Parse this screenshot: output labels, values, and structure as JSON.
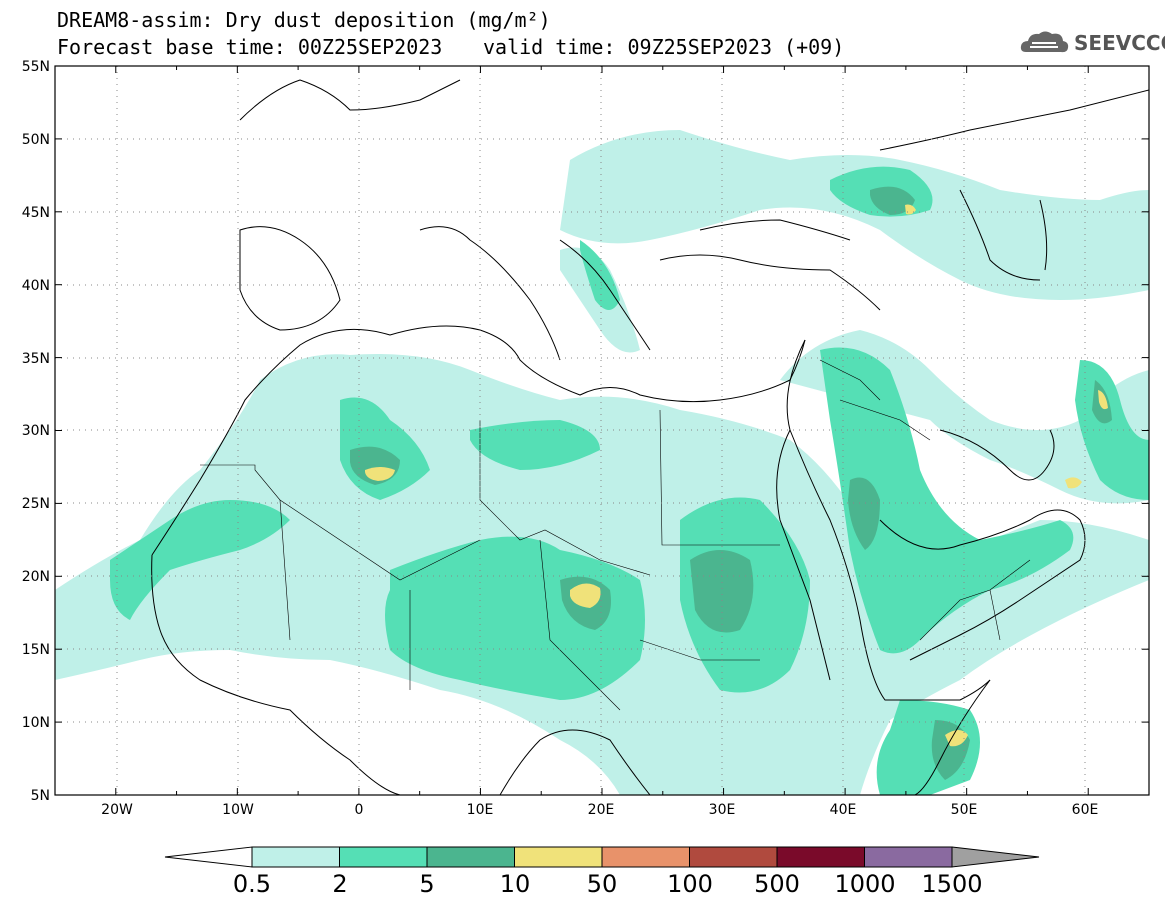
{
  "title": {
    "line1": "DREAM8-assim: Dry dust deposition (mg/m²)",
    "line2": "Forecast base time: 00Z25SEP2023",
    "valid": "valid time: 09Z25SEP2023 (+09)"
  },
  "logo": {
    "text": "SEEVCCC",
    "icon": "cloud-logo-icon"
  },
  "map": {
    "lon_range": [
      -25,
      65
    ],
    "lat_range": [
      5,
      55
    ],
    "lat_ticks": [
      "5N",
      "10N",
      "15N",
      "20N",
      "25N",
      "30N",
      "35N",
      "40N",
      "45N",
      "50N",
      "55N"
    ],
    "lon_ticks": [
      "20W",
      "10W",
      "0",
      "10E",
      "20E",
      "30E",
      "40E",
      "50E",
      "60E"
    ],
    "grid": "dotted"
  },
  "colorbar": {
    "labels": [
      "0.5",
      "2",
      "5",
      "10",
      "50",
      "100",
      "500",
      "1000",
      "1500"
    ],
    "colors": [
      "#bff0e8",
      "#55dfb5",
      "#4bb58f",
      "#f0e27a",
      "#e8926a",
      "#b04a3e",
      "#7a0a2a",
      "#8a6aa0"
    ],
    "under_color": "#ffffff",
    "over_color": "#a0a0a0"
  }
}
